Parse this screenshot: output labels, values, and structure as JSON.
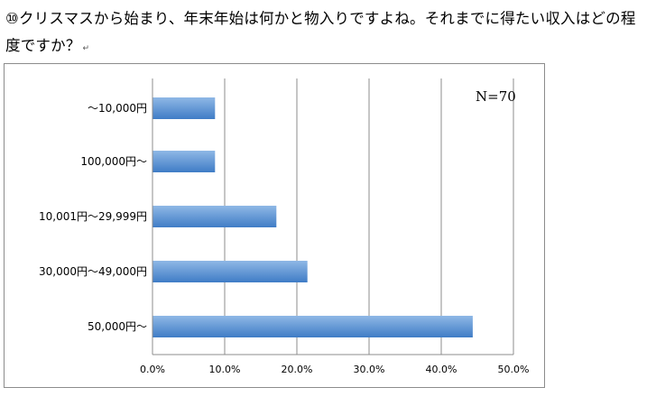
{
  "question": {
    "text": "⑩クリスマスから始まり、年末年始は何かと物入りですよね。それまでに得たい収入はどの程度ですか？",
    "return_mark": "↵"
  },
  "chart_data": {
    "type": "bar",
    "orientation": "horizontal",
    "categories": [
      "～10,000円",
      "100,000円～",
      "10,001円～29,999円",
      "30,000円～49,000円",
      "50,000円～"
    ],
    "values": [
      8.6,
      8.6,
      17.1,
      21.4,
      44.3
    ],
    "unit": "%",
    "xlim": [
      0,
      50
    ],
    "ticks": [
      "0.0%",
      "10.0%",
      "20.0%",
      "30.0%",
      "40.0%",
      "50.0%"
    ],
    "tick_values": [
      0,
      10,
      20,
      30,
      40,
      50
    ],
    "grid": true,
    "annotation": "N=70",
    "bar_color_top": "#8fb8e6",
    "bar_color_bottom": "#3f7cc6",
    "grid_color": "#8c8c8c"
  }
}
